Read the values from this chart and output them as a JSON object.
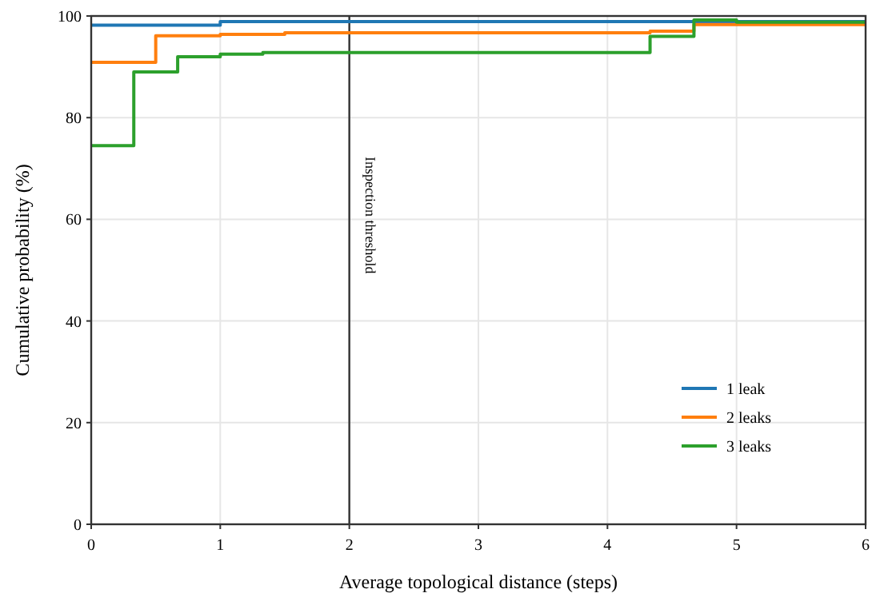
{
  "chart_data": {
    "type": "step",
    "xlabel": "Average topological distance (steps)",
    "ylabel": "Cumulative probability (%)",
    "xlim": [
      0,
      6
    ],
    "xticks": [
      0,
      1,
      2,
      3,
      4,
      5,
      6
    ],
    "ylim": [
      0,
      100
    ],
    "yticks": [
      0,
      20,
      40,
      60,
      80,
      100
    ],
    "grid": true,
    "legend": "bottom right",
    "series": [
      {
        "name": "1 leak",
        "color": "#1f77b4",
        "x": [
          0,
          1,
          6
        ],
        "values": [
          98.2,
          98.9,
          98.9
        ]
      },
      {
        "name": "2 leaks",
        "color": "#ff7f0e",
        "x": [
          0,
          0.5,
          1,
          1.5,
          4.33,
          4.67,
          6
        ],
        "values": [
          90.9,
          96.1,
          96.4,
          96.7,
          97,
          98.3,
          98.3
        ]
      },
      {
        "name": "3 leaks",
        "color": "#2ca02c",
        "x": [
          0,
          0.33,
          0.67,
          1,
          1.33,
          4.33,
          4.67,
          5,
          6
        ],
        "values": [
          74.5,
          89,
          92,
          92.5,
          92.8,
          96,
          99.2,
          98.8,
          98.8
        ]
      }
    ],
    "ref_lines": [
      {
        "axis": "x",
        "value": 2,
        "label": "Inspection threshold",
        "color": "#333333"
      }
    ]
  }
}
